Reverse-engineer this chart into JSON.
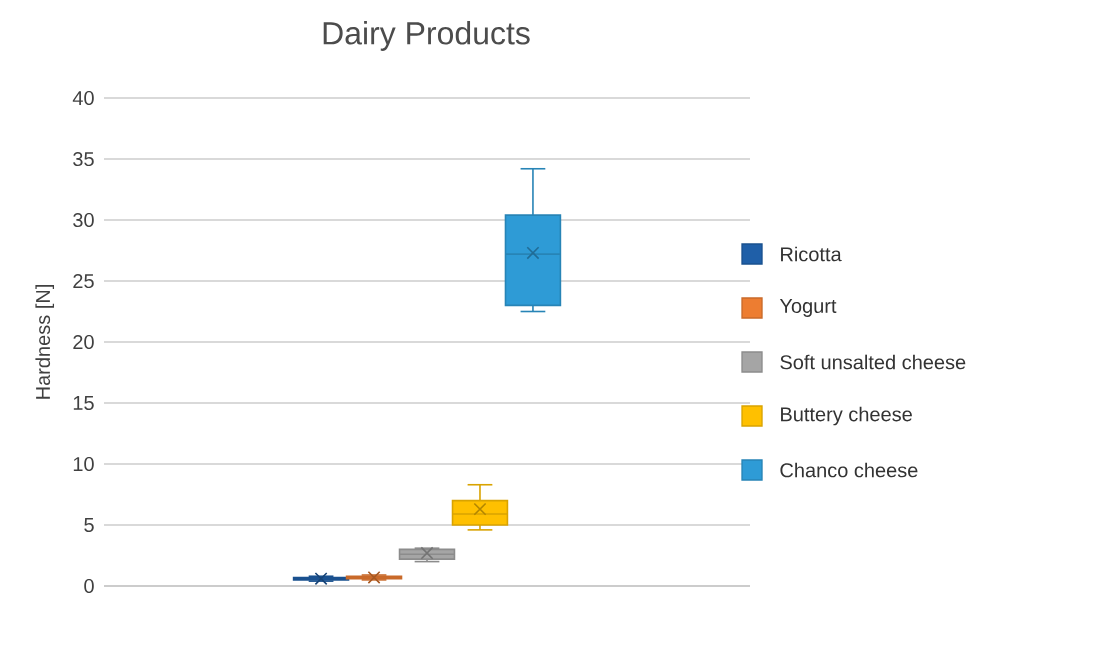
{
  "chart_data": {
    "type": "box",
    "title": "Dairy Products",
    "ylabel": "Hardness [N]",
    "categories": [
      null
    ],
    "ylim": [
      0,
      40
    ],
    "yticks": [
      0,
      5,
      10,
      15,
      20,
      25,
      30,
      35,
      40
    ],
    "grid": "y",
    "legend": "right",
    "marker": "cross",
    "series": [
      {
        "name": "Ricotta",
        "color": "#1f5fa8",
        "boxes": [
          {
            "low": 0.4,
            "q1": 0.5,
            "median": 0.6,
            "q3": 0.7,
            "high": 0.8,
            "mean": 0.6
          }
        ]
      },
      {
        "name": "Yogurt",
        "color": "#ed7d31",
        "boxes": [
          {
            "low": 0.5,
            "q1": 0.6,
            "median": 0.7,
            "q3": 0.8,
            "high": 0.9,
            "mean": 0.7
          }
        ]
      },
      {
        "name": "Soft unsalted cheese",
        "color": "#a5a5a5",
        "boxes": [
          {
            "low": 2.0,
            "q1": 2.2,
            "median": 2.6,
            "q3": 3.0,
            "high": 3.1,
            "mean": 2.7
          }
        ]
      },
      {
        "name": "Buttery cheese",
        "color": "#ffc000",
        "boxes": [
          {
            "low": 4.6,
            "q1": 5.0,
            "median": 5.9,
            "q3": 7.0,
            "high": 8.3,
            "mean": 6.3
          }
        ]
      },
      {
        "name": "Chanco cheese",
        "color": "#2e9bd6",
        "boxes": [
          {
            "low": 22.5,
            "q1": 23.0,
            "median": 27.2,
            "q3": 30.4,
            "high": 34.2,
            "mean": 27.3
          }
        ]
      }
    ]
  }
}
